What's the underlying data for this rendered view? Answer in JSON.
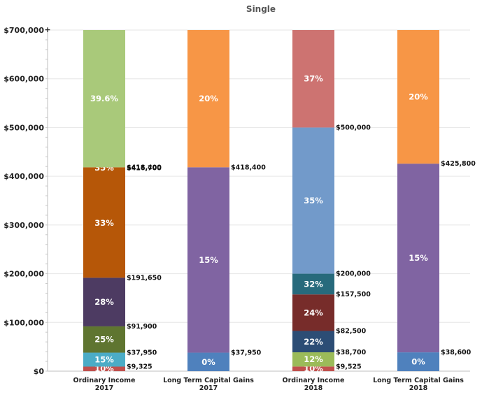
{
  "chart_data": {
    "type": "bar",
    "stacked": true,
    "title": "Single",
    "xlabel": "",
    "ylabel": "",
    "ylim": [
      0,
      700000
    ],
    "y_ticks": [
      "$0",
      "$100,000",
      "$200,000",
      "$300,000",
      "$400,000",
      "$500,000",
      "$600,000",
      "$700,000"
    ],
    "y_tick_values": [
      0,
      100000,
      200000,
      300000,
      400000,
      500000,
      600000,
      700000
    ],
    "y_max_marker": "+",
    "grid": true,
    "categories": [
      {
        "line1": "Ordinary Income",
        "line2": "2017"
      },
      {
        "line1": "Long Term Capital Gains",
        "line2": "2017"
      },
      {
        "line1": "Ordinary Income",
        "line2": "2018"
      },
      {
        "line1": "Long Term Capital Gains",
        "line2": "2018"
      }
    ],
    "bars": [
      {
        "segments": [
          {
            "rate": "10%",
            "from": 0,
            "to": 9325,
            "color": "#c0504d"
          },
          {
            "rate": "15%",
            "from": 9325,
            "to": 37950,
            "color": "#4bacc6"
          },
          {
            "rate": "25%",
            "from": 37950,
            "to": 91900,
            "color": "#5f7530"
          },
          {
            "rate": "28%",
            "from": 91900,
            "to": 191650,
            "color": "#4d3b62"
          },
          {
            "rate": "33%",
            "from": 191650,
            "to": 416700,
            "color": "#b65708"
          },
          {
            "rate": "35%",
            "from": 416700,
            "to": 418400,
            "color": "#b65708"
          },
          {
            "rate": "39.6%",
            "from": 418400,
            "to": 700000,
            "color": "#a9c97a"
          }
        ],
        "bounds": [
          {
            "value": 9325,
            "label": "$9,325"
          },
          {
            "value": 37950,
            "label": "$37,950"
          },
          {
            "value": 91900,
            "label": "$91,900"
          },
          {
            "value": 191650,
            "label": "$191,650"
          },
          {
            "value": 416700,
            "label": "$416,700"
          },
          {
            "value": 418400,
            "label": "$418,400"
          }
        ]
      },
      {
        "segments": [
          {
            "rate": "0%",
            "from": 0,
            "to": 37950,
            "color": "#4f81bd"
          },
          {
            "rate": "15%",
            "from": 37950,
            "to": 418400,
            "color": "#8064a2"
          },
          {
            "rate": "20%",
            "from": 418400,
            "to": 700000,
            "color": "#f79646"
          }
        ],
        "bounds": [
          {
            "value": 37950,
            "label": "$37,950"
          },
          {
            "value": 418400,
            "label": "$418,400"
          }
        ]
      },
      {
        "segments": [
          {
            "rate": "10%",
            "from": 0,
            "to": 9525,
            "color": "#c0504d"
          },
          {
            "rate": "12%",
            "from": 9525,
            "to": 38700,
            "color": "#9bbb59"
          },
          {
            "rate": "22%",
            "from": 38700,
            "to": 82500,
            "color": "#2c4d75"
          },
          {
            "rate": "24%",
            "from": 82500,
            "to": 157500,
            "color": "#772c2a"
          },
          {
            "rate": "32%",
            "from": 157500,
            "to": 200000,
            "color": "#276a7c"
          },
          {
            "rate": "35%",
            "from": 200000,
            "to": 500000,
            "color": "#729aca"
          },
          {
            "rate": "37%",
            "from": 500000,
            "to": 700000,
            "color": "#cd7371"
          }
        ],
        "bounds": [
          {
            "value": 9525,
            "label": "$9,525"
          },
          {
            "value": 38700,
            "label": "$38,700"
          },
          {
            "value": 82500,
            "label": "$82,500"
          },
          {
            "value": 157500,
            "label": "$157,500"
          },
          {
            "value": 200000,
            "label": "$200,000"
          },
          {
            "value": 500000,
            "label": "$500,000"
          }
        ]
      },
      {
        "segments": [
          {
            "rate": "0%",
            "from": 0,
            "to": 38600,
            "color": "#4f81bd"
          },
          {
            "rate": "15%",
            "from": 38600,
            "to": 425800,
            "color": "#8064a2"
          },
          {
            "rate": "20%",
            "from": 425800,
            "to": 700000,
            "color": "#f79646"
          }
        ],
        "bounds": [
          {
            "value": 38600,
            "label": "$38,600"
          },
          {
            "value": 425800,
            "label": "$425,800"
          }
        ]
      }
    ]
  }
}
